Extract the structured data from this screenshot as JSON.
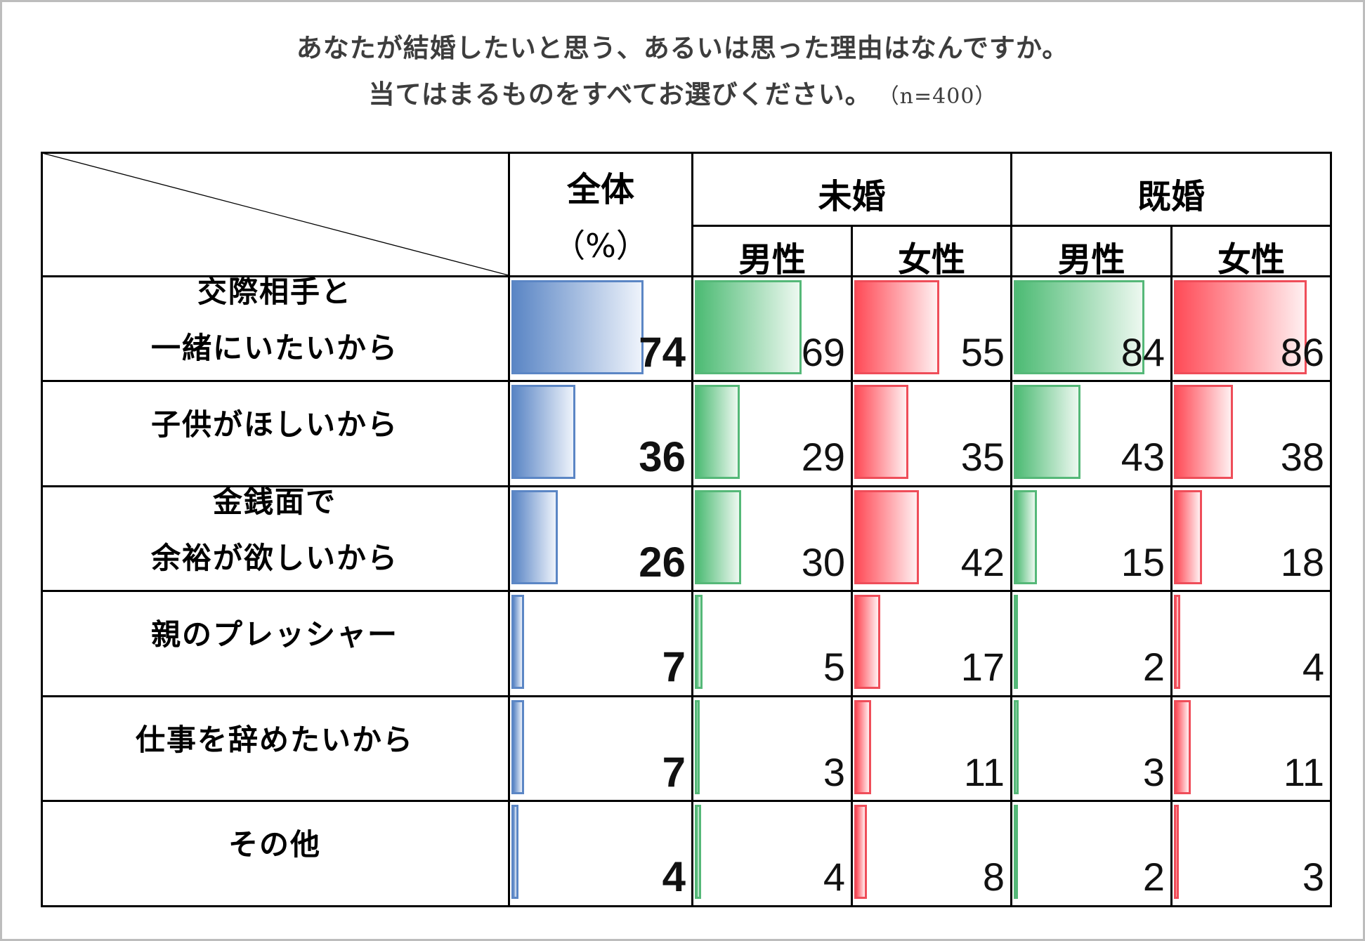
{
  "title": {
    "line1": "あなたが結婚したいと思う、あるいは思った理由はなんですか。",
    "line2": "当てはまるものをすべてお選びください。",
    "sample": "（n=400）"
  },
  "header": {
    "overall": "全体",
    "overall_unit": "（%）",
    "unmarried": "未婚",
    "married": "既婚",
    "male": "男性",
    "female": "女性"
  },
  "colors": {
    "overall": "#5b86c5",
    "male": "#4dbb74",
    "female": "#ff4c58"
  },
  "chart_data": {
    "type": "table",
    "title": "あなたが結婚したいと思う、あるいは思った理由はなんですか。当てはまるものをすべてお選びください。（n=400）",
    "unit": "%",
    "columns": [
      "全体",
      "未婚 男性",
      "未婚 女性",
      "既婚 男性",
      "既婚 女性"
    ],
    "rows": [
      {
        "label": [
          "交際相手と",
          "一緒にいたいから"
        ],
        "values": [
          74,
          69,
          55,
          84,
          86
        ]
      },
      {
        "label": [
          "子供がほしいから"
        ],
        "values": [
          36,
          29,
          35,
          43,
          38
        ]
      },
      {
        "label": [
          "金銭面で",
          "余裕が欲しいから"
        ],
        "values": [
          26,
          30,
          42,
          15,
          18
        ]
      },
      {
        "label": [
          "親のプレッシャー"
        ],
        "values": [
          7,
          5,
          17,
          2,
          4
        ]
      },
      {
        "label": [
          "仕事を辞めたいから"
        ],
        "values": [
          7,
          3,
          11,
          3,
          11
        ]
      },
      {
        "label": [
          "その他"
        ],
        "values": [
          4,
          4,
          8,
          2,
          3
        ]
      }
    ],
    "max": 100
  }
}
